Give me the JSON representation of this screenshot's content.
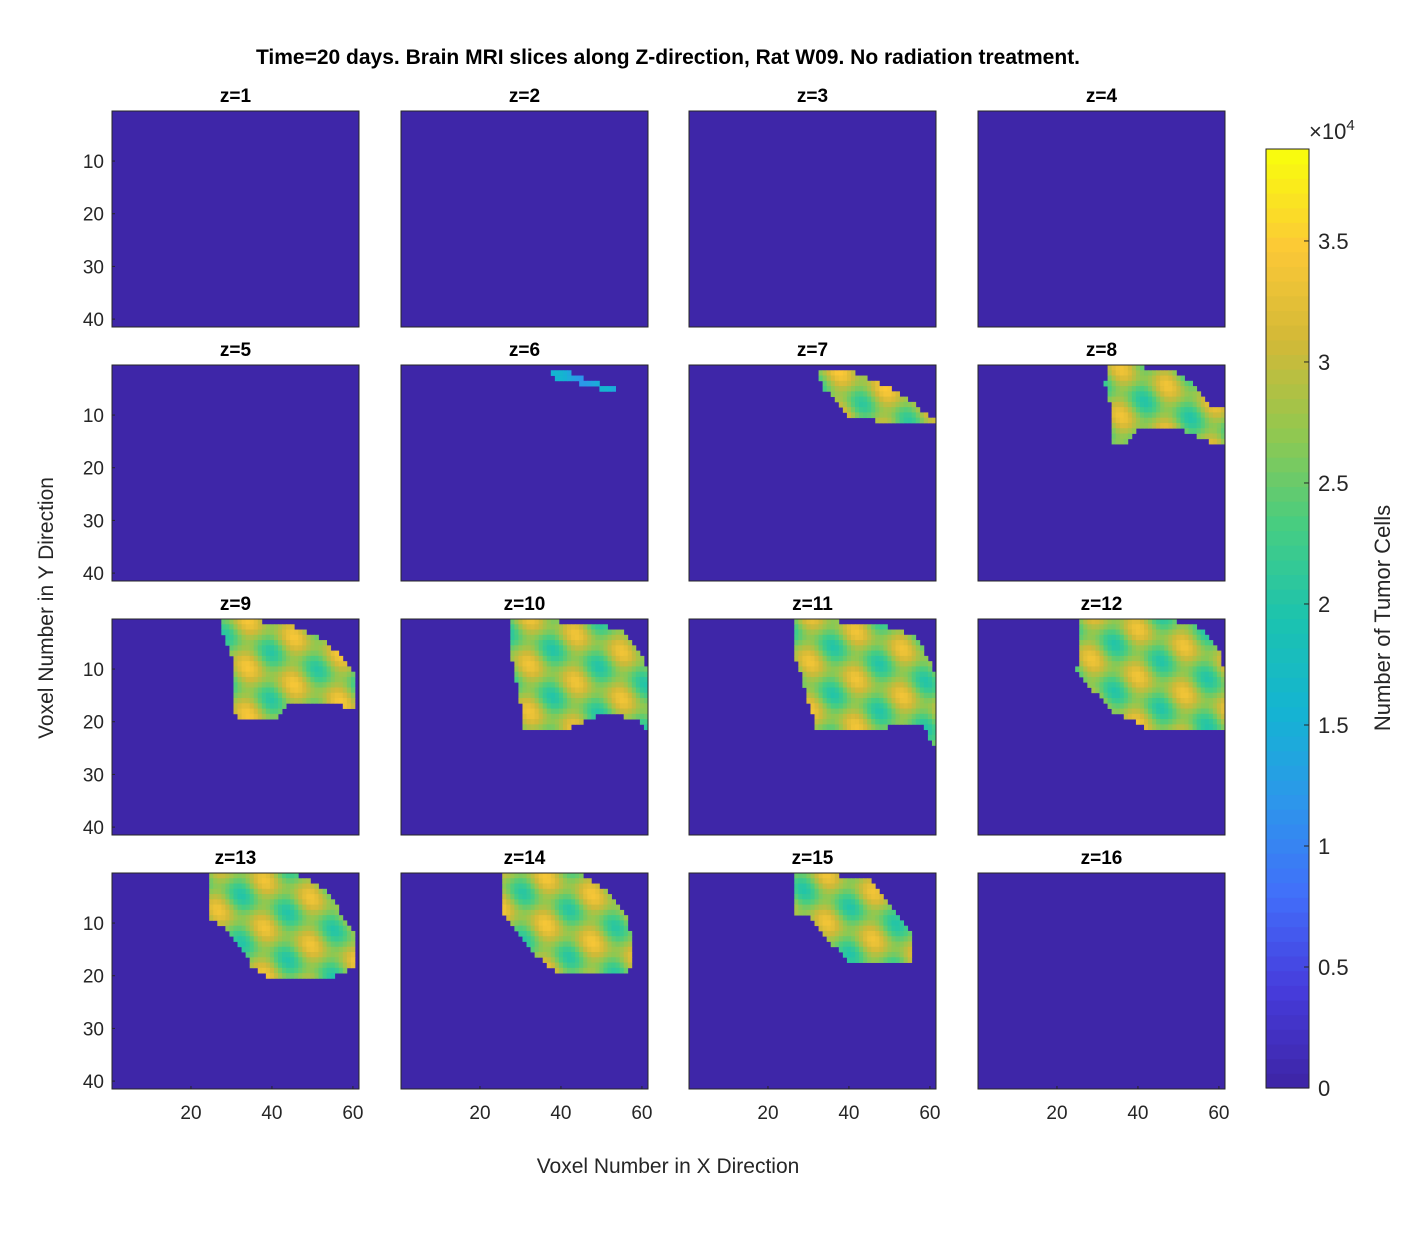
{
  "chart_data": {
    "type": "heatmap",
    "title": "Time=20 days. Brain MRI slices along Z-direction, Rat W09. No radiation treatment.",
    "xlabel": "Voxel Number in X Direction",
    "ylabel": "Voxel Number in Y Direction",
    "colorbar": {
      "label": "Number of Tumor Cells",
      "exponent_label": "×10⁴",
      "exponent_base": "×10",
      "exponent_power": "4",
      "ticks": [
        "0",
        "0.5",
        "1",
        "1.5",
        "2",
        "2.5",
        "3",
        "3.5"
      ],
      "range": [
        0,
        38800
      ],
      "colormap": "parula"
    },
    "grid": false,
    "xlim": [
      0.5,
      61.5
    ],
    "ylim": [
      0.5,
      41.5
    ],
    "x_ticks": [
      "20",
      "40",
      "60"
    ],
    "y_ticks": [
      "10",
      "20",
      "30",
      "40"
    ],
    "colors": {
      "background": "#3e26a8",
      "high": "#f9fb0e",
      "mid": "#18bdb1",
      "orange": "#fcbb3d"
    },
    "panels": [
      {
        "title": "z=1",
        "tumor": null
      },
      {
        "title": "z=2",
        "tumor": null
      },
      {
        "title": "z=3",
        "tumor": null
      },
      {
        "title": "z=4",
        "tumor": null
      },
      {
        "title": "z=5",
        "tumor": null
      },
      {
        "title": "z=6",
        "tumor": {
          "poly": [
            [
              38,
              2
            ],
            [
              41,
              1.5
            ],
            [
              46,
              3
            ],
            [
              54,
              5
            ],
            [
              55,
              6
            ],
            [
              52,
              5.5
            ],
            [
              45,
              4
            ],
            [
              39,
              3
            ]
          ],
          "mean": 12000,
          "spread": 4000
        }
      },
      {
        "title": "z=7",
        "tumor": {
          "poly": [
            [
              33,
              2
            ],
            [
              40,
              1.5
            ],
            [
              45,
              3
            ],
            [
              52,
              5.5
            ],
            [
              58,
              9
            ],
            [
              62,
              11
            ],
            [
              61,
              12
            ],
            [
              50,
              11.5
            ],
            [
              40,
              10
            ],
            [
              38,
              8
            ],
            [
              34,
              5
            ],
            [
              33,
              3
            ]
          ],
          "mean": 28000,
          "spread": 7000
        }
      },
      {
        "title": "z=8",
        "tumor": {
          "poly": [
            [
              33,
              1
            ],
            [
              42,
              1
            ],
            [
              48,
              1.5
            ],
            [
              54,
              4
            ],
            [
              58,
              8
            ],
            [
              62,
              9
            ],
            [
              62,
              16
            ],
            [
              58,
              15
            ],
            [
              52,
              13
            ],
            [
              40,
              13
            ],
            [
              36,
              16
            ],
            [
              33,
              16
            ],
            [
              34,
              10
            ],
            [
              32,
              4
            ]
          ],
          "mean": 27000,
          "spread": 7000
        }
      },
      {
        "title": "z=9",
        "tumor": {
          "poly": [
            [
              28,
              1
            ],
            [
              38,
              1
            ],
            [
              46,
              2
            ],
            [
              52,
              4
            ],
            [
              58,
              8
            ],
            [
              61,
              12
            ],
            [
              61,
              18
            ],
            [
              58,
              17
            ],
            [
              50,
              16
            ],
            [
              44,
              17
            ],
            [
              40,
              20
            ],
            [
              33,
              20
            ],
            [
              31,
              18
            ],
            [
              31,
              10
            ],
            [
              28,
              3
            ]
          ],
          "mean": 27500,
          "spread": 7000
        }
      },
      {
        "title": "z=10",
        "tumor": {
          "poly": [
            [
              28,
              1
            ],
            [
              40,
              1
            ],
            [
              50,
              1.5
            ],
            [
              56,
              3
            ],
            [
              61,
              9
            ],
            [
              62,
              14
            ],
            [
              62,
              22
            ],
            [
              60,
              20
            ],
            [
              52,
              18
            ],
            [
              46,
              20
            ],
            [
              40,
              22
            ],
            [
              31,
              22
            ],
            [
              30,
              16
            ],
            [
              28,
              8
            ]
          ],
          "mean": 27000,
          "spread": 7000
        }
      },
      {
        "title": "z=11",
        "tumor": {
          "poly": [
            [
              27,
              1
            ],
            [
              38,
              1
            ],
            [
              50,
              2
            ],
            [
              57,
              4
            ],
            [
              61,
              10
            ],
            [
              62,
              18
            ],
            [
              61,
              25
            ],
            [
              58,
              20
            ],
            [
              50,
              21
            ],
            [
              40,
              22
            ],
            [
              32,
              21
            ],
            [
              30,
              16
            ],
            [
              27,
              8
            ]
          ],
          "mean": 27000,
          "spread": 7000
        }
      },
      {
        "title": "z=12",
        "tumor": {
          "poly": [
            [
              26,
              1
            ],
            [
              38,
              1
            ],
            [
              50,
              1
            ],
            [
              55,
              2
            ],
            [
              60,
              6
            ],
            [
              62,
              12
            ],
            [
              62,
              22
            ],
            [
              58,
              22
            ],
            [
              50,
              22
            ],
            [
              42,
              21
            ],
            [
              34,
              18
            ],
            [
              29,
              14
            ],
            [
              25,
              10
            ],
            [
              26,
              4
            ]
          ],
          "mean": 27000,
          "spread": 7000
        }
      },
      {
        "title": "z=13",
        "tumor": {
          "poly": [
            [
              25,
              1
            ],
            [
              36,
              1
            ],
            [
              47,
              1
            ],
            [
              54,
              4
            ],
            [
              57,
              8
            ],
            [
              61,
              12
            ],
            [
              61,
              18
            ],
            [
              56,
              20
            ],
            [
              50,
              21
            ],
            [
              40,
              21
            ],
            [
              35,
              18
            ],
            [
              30,
              12
            ],
            [
              25,
              9
            ]
          ],
          "mean": 27000,
          "spread": 7000
        }
      },
      {
        "title": "z=14",
        "tumor": {
          "poly": [
            [
              26,
              1
            ],
            [
              38,
              1
            ],
            [
              46,
              1
            ],
            [
              52,
              4
            ],
            [
              56,
              8
            ],
            [
              58,
              14
            ],
            [
              57,
              19
            ],
            [
              52,
              20
            ],
            [
              40,
              20
            ],
            [
              34,
              16
            ],
            [
              30,
              12
            ],
            [
              26,
              8
            ]
          ],
          "mean": 27500,
          "spread": 7000
        }
      },
      {
        "title": "z=15",
        "tumor": {
          "poly": [
            [
              27,
              1
            ],
            [
              38,
              1
            ],
            [
              46,
              2
            ],
            [
              52,
              8
            ],
            [
              56,
              12
            ],
            [
              56,
              17
            ],
            [
              52,
              18
            ],
            [
              40,
              17
            ],
            [
              36,
              14
            ],
            [
              31,
              9
            ],
            [
              27,
              8
            ]
          ],
          "mean": 27000,
          "spread": 7000
        }
      },
      {
        "title": "z=16",
        "tumor": null
      }
    ]
  }
}
